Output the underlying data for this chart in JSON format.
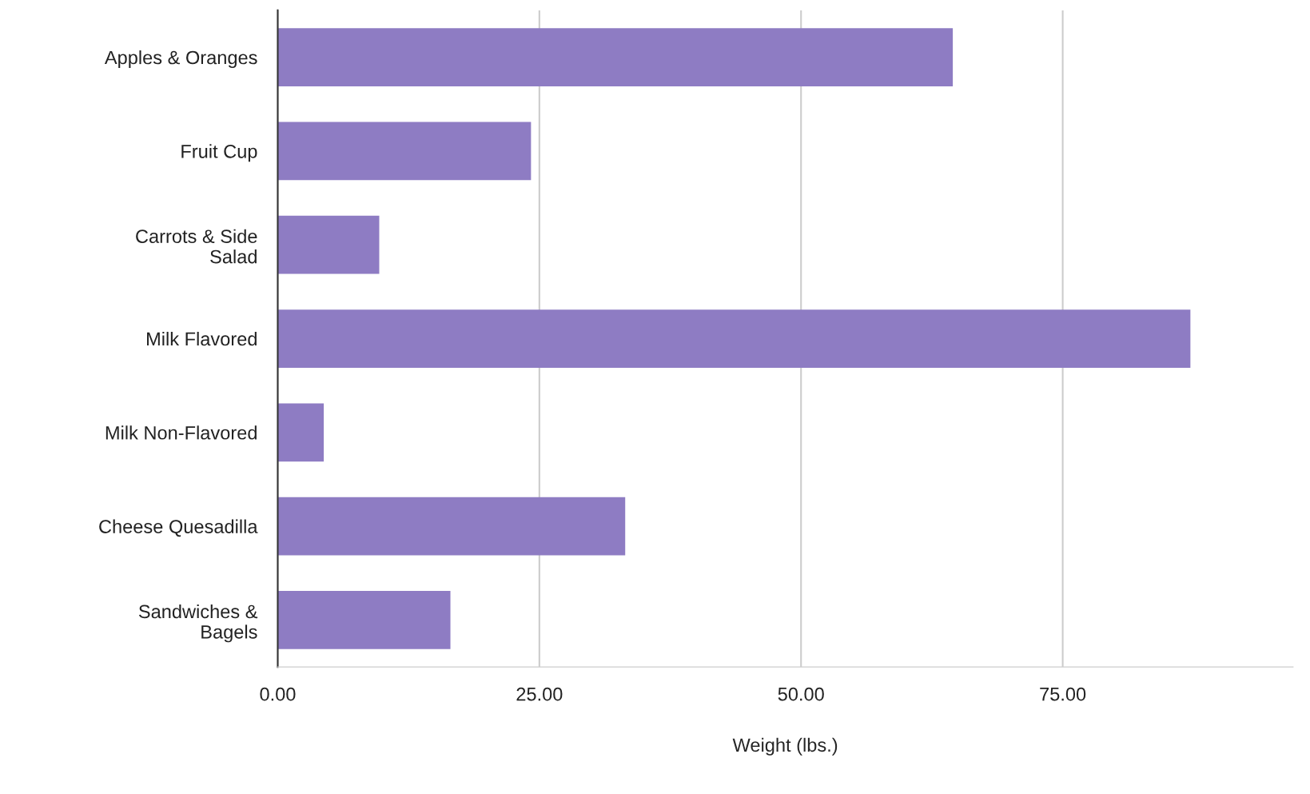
{
  "chart_data": {
    "type": "bar",
    "orientation": "horizontal",
    "xlabel": "Weight (lbs.)",
    "categories": [
      "Apples & Oranges",
      "Fruit Cup",
      "Carrots & Side\nSalad",
      "Milk Flavored",
      "Milk Non-Flavored",
      "Cheese Quesadilla",
      "Sandwiches &\nBagels"
    ],
    "values": [
      64.5,
      24.2,
      9.7,
      87.2,
      4.4,
      33.2,
      16.5
    ],
    "color": "#8e7cc3",
    "xlim": [
      0,
      97
    ],
    "xticks": [
      {
        "value": 0,
        "label": "0.00"
      },
      {
        "value": 25,
        "label": "25.00"
      },
      {
        "value": 50,
        "label": "50.00"
      },
      {
        "value": 75,
        "label": "75.00"
      }
    ],
    "grid": "x"
  }
}
